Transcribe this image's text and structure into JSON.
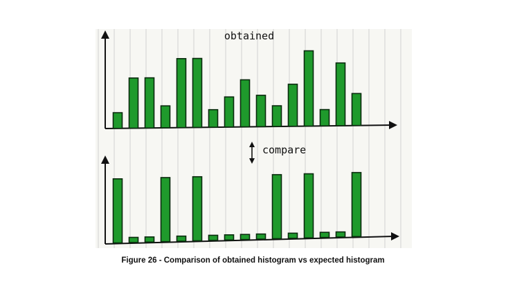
{
  "figure": {
    "caption": "Figure 26 -  Comparison of obtained histogram vs expected histogram"
  },
  "annotations": {
    "compare": "compare"
  },
  "colors": {
    "bar_fill": "#1f9a2c",
    "bar_outline": "#0a2a0e",
    "paper": "#f7f7f3",
    "rule_line": "#c8c8c8"
  },
  "chart_data": [
    {
      "type": "bar",
      "title": "obtained",
      "xlabel": "",
      "ylabel": "",
      "grid": false,
      "values": [
        2.5,
        8,
        8,
        3.5,
        11,
        11,
        2.8,
        4.8,
        7.5,
        5,
        3.3,
        6.7,
        12,
        2.6,
        10,
        5.1
      ],
      "ylim": [
        0,
        13
      ]
    },
    {
      "type": "bar",
      "title": "",
      "xlabel": "",
      "ylabel": "",
      "grid": false,
      "values": [
        10,
        0.8,
        0.8,
        10,
        0.8,
        10,
        0.8,
        0.8,
        0.8,
        0.8,
        10,
        0.8,
        10,
        0.8,
        0.8,
        10
      ],
      "ylim": [
        0,
        11
      ]
    }
  ]
}
